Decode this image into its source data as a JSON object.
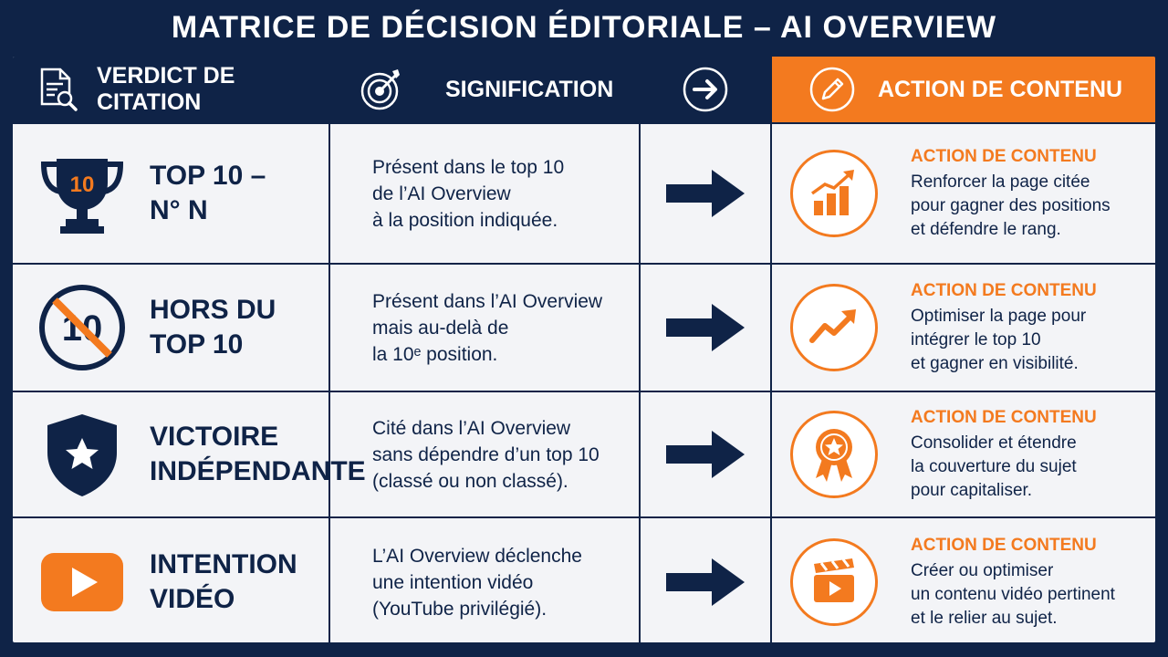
{
  "title": "MATRICE DE DÉCISION ÉDITORIALE – AI OVERVIEW",
  "colors": {
    "navy": "#0f2347",
    "orange": "#f37a1f",
    "bg": "#f3f4f7"
  },
  "header": {
    "col1": {
      "label": "VERDICT DE CITATION",
      "icon": "document-search-icon"
    },
    "col2": {
      "label": "SIGNIFICATION",
      "icon": "target-icon"
    },
    "col3": {
      "icon": "arrow-circle-icon"
    },
    "col4": {
      "label": "ACTION DE CONTENU",
      "icon": "pencil-icon"
    }
  },
  "rows": [
    {
      "verdict": [
        "TOP 10 –",
        "N° N"
      ],
      "verdict_icon": "trophy-icon",
      "trophy_number": "10",
      "meaning": [
        "Présent dans le top 10",
        "de l’AI Overview",
        "à la position indiquée."
      ],
      "action_title": "ACTION DE CONTENU",
      "action": [
        "Renforcer la page citée",
        "pour gagner des positions",
        "et défendre le rang."
      ],
      "action_icon": "bar-chart-growth-icon"
    },
    {
      "verdict": [
        "HORS DU",
        "TOP 10"
      ],
      "verdict_icon": "no-top10-icon",
      "crossed_number": "10",
      "meaning": [
        "Présent dans l’AI Overview",
        "mais au-delà de",
        "la 10ᵉ position."
      ],
      "action_title": "ACTION DE CONTENU",
      "action": [
        "Optimiser la page pour",
        "intégrer le top 10",
        "et gagner en visibilité."
      ],
      "action_icon": "trend-up-icon"
    },
    {
      "verdict": [
        "VICTOIRE",
        "INDÉPENDANTE"
      ],
      "verdict_icon": "shield-star-icon",
      "meaning": [
        "Cité dans l’AI Overview",
        "sans dépendre d’un top 10",
        "(classé ou non classé)."
      ],
      "action_title": "ACTION DE CONTENU",
      "action": [
        "Consolider et étendre",
        "la couverture du sujet",
        "pour capitaliser."
      ],
      "action_icon": "award-ribbon-icon"
    },
    {
      "verdict": [
        "INTENTION",
        "VIDÉO"
      ],
      "verdict_icon": "youtube-play-icon",
      "meaning": [
        "L’AI Overview déclenche",
        "une intention vidéo",
        "(YouTube privilégié)."
      ],
      "action_title": "ACTION DE CONTENU",
      "action": [
        "Créer ou optimiser",
        "un contenu vidéo pertinent",
        "et le relier au sujet."
      ],
      "action_icon": "clapperboard-icon"
    }
  ]
}
